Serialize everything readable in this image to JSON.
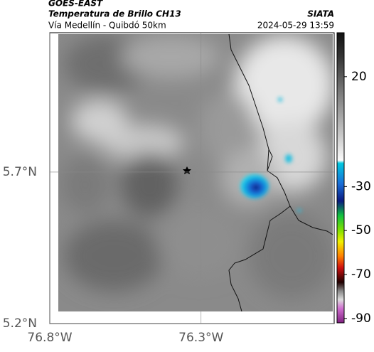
{
  "header": {
    "title": "GOES-EAST",
    "subtitle": "Temperatura de Brillo CH13",
    "source": "SIATA",
    "route": "Vía Medellín - Quibdó 50km",
    "datetime": "2024-05-29 13:59"
  },
  "map": {
    "xlim": [
      -76.8,
      -75.86
    ],
    "ylim": [
      5.2,
      6.16
    ],
    "xticks": [
      {
        "value": -76.8,
        "label": "76.8°W"
      },
      {
        "value": -76.3,
        "label": "76.3°W"
      }
    ],
    "yticks": [
      {
        "value": 5.7,
        "label": "5.7°N"
      },
      {
        "value": 5.2,
        "label": "5.2°N"
      }
    ],
    "grid": true
  },
  "colorbar": {
    "range": [
      -92,
      40
    ],
    "ticks": [
      20,
      -30,
      -50,
      -70,
      -90
    ]
  }
}
